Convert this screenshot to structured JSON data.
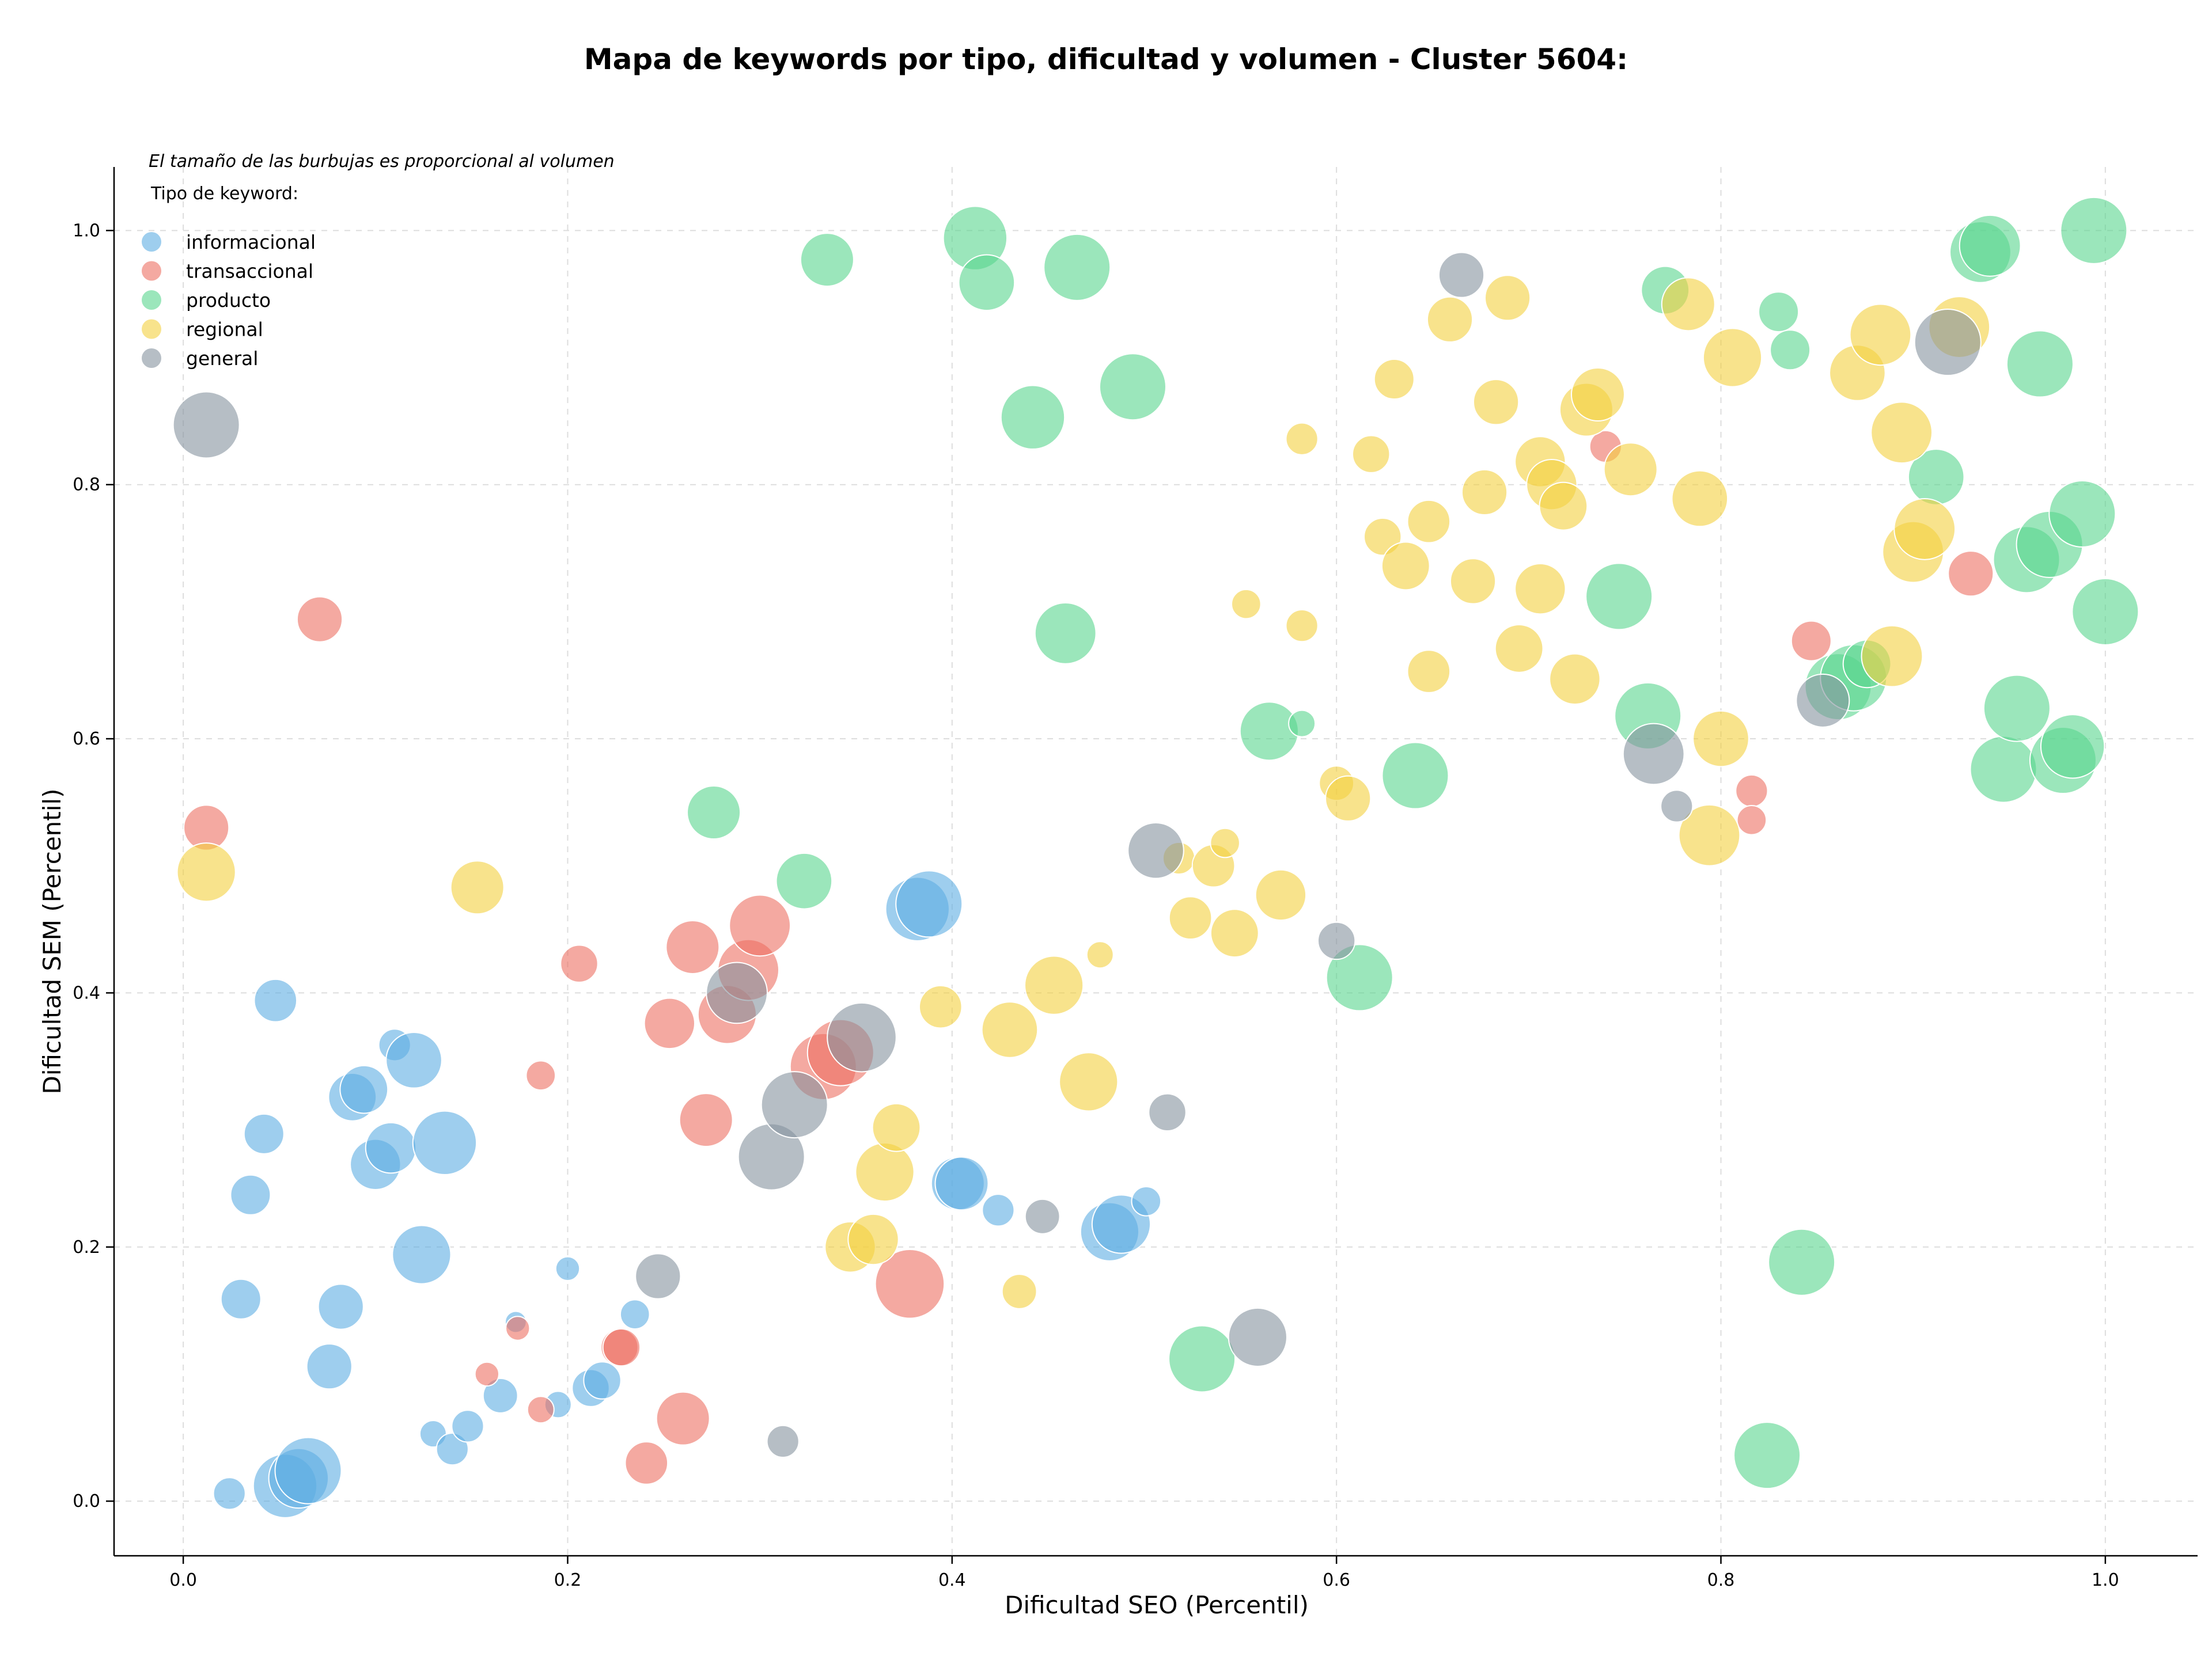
{
  "chart_data": {
    "type": "scatter",
    "title": "Mapa de keywords por tipo, dificultad y volumen - Cluster 5604:",
    "subtitle": "El tamaño de las burbujas es proporcional al volumen",
    "xlabel": "Dificultad SEO (Percentil)",
    "ylabel": "Dificultad SEM (Percentil)",
    "xlim": [
      -0.036,
      1.048
    ],
    "ylim": [
      -0.043,
      1.05
    ],
    "xticks": [
      "0.0",
      "0.2",
      "0.4",
      "0.6",
      "0.8",
      "1.0"
    ],
    "yticks": [
      "0.0",
      "0.2",
      "0.4",
      "0.6",
      "0.8",
      "1.0"
    ],
    "grid": true,
    "legend": {
      "title": "Tipo de keyword:",
      "position": "top-left"
    },
    "series": [
      {
        "name": "informacional",
        "color": "#5dade2",
        "points": [
          [
            0.024,
            0.006,
            24
          ],
          [
            0.053,
            0.012,
            48
          ],
          [
            0.06,
            0.018,
            45
          ],
          [
            0.065,
            0.024,
            50
          ],
          [
            0.03,
            0.159,
            30
          ],
          [
            0.035,
            0.241,
            30
          ],
          [
            0.042,
            0.289,
            30
          ],
          [
            0.048,
            0.394,
            32
          ],
          [
            0.076,
            0.106,
            34
          ],
          [
            0.082,
            0.153,
            34
          ],
          [
            0.088,
            0.318,
            36
          ],
          [
            0.094,
            0.324,
            36
          ],
          [
            0.1,
            0.265,
            38
          ],
          [
            0.108,
            0.278,
            38
          ],
          [
            0.11,
            0.359,
            24
          ],
          [
            0.12,
            0.347,
            42
          ],
          [
            0.124,
            0.194,
            44
          ],
          [
            0.136,
            0.282,
            48
          ],
          [
            0.13,
            0.053,
            20
          ],
          [
            0.14,
            0.041,
            24
          ],
          [
            0.148,
            0.059,
            24
          ],
          [
            0.165,
            0.083,
            26
          ],
          [
            0.173,
            0.141,
            16
          ],
          [
            0.195,
            0.076,
            20
          ],
          [
            0.2,
            0.183,
            18
          ],
          [
            0.212,
            0.089,
            28
          ],
          [
            0.218,
            0.095,
            28
          ],
          [
            0.235,
            0.147,
            22
          ],
          [
            0.382,
            0.466,
            48
          ],
          [
            0.388,
            0.47,
            50
          ],
          [
            0.403,
            0.25,
            40
          ],
          [
            0.405,
            0.25,
            40
          ],
          [
            0.424,
            0.229,
            24
          ],
          [
            0.482,
            0.212,
            44
          ],
          [
            0.488,
            0.218,
            44
          ],
          [
            0.501,
            0.236,
            22
          ]
        ]
      },
      {
        "name": "transaccional",
        "color": "#ec7063",
        "points": [
          [
            0.012,
            0.53,
            34
          ],
          [
            0.071,
            0.694,
            34
          ],
          [
            0.158,
            0.1,
            18
          ],
          [
            0.174,
            0.136,
            18
          ],
          [
            0.186,
            0.072,
            20
          ],
          [
            0.186,
            0.335,
            22
          ],
          [
            0.206,
            0.423,
            28
          ],
          [
            0.227,
            0.121,
            28
          ],
          [
            0.228,
            0.121,
            28
          ],
          [
            0.241,
            0.03,
            32
          ],
          [
            0.253,
            0.376,
            38
          ],
          [
            0.265,
            0.436,
            40
          ],
          [
            0.26,
            0.065,
            40
          ],
          [
            0.272,
            0.3,
            40
          ],
          [
            0.283,
            0.383,
            44
          ],
          [
            0.294,
            0.418,
            46
          ],
          [
            0.3,
            0.453,
            46
          ],
          [
            0.333,
            0.342,
            50
          ],
          [
            0.342,
            0.353,
            50
          ],
          [
            0.378,
            0.171,
            52
          ],
          [
            0.74,
            0.83,
            24
          ],
          [
            0.816,
            0.559,
            24
          ],
          [
            0.816,
            0.536,
            22
          ],
          [
            0.847,
            0.677,
            30
          ],
          [
            0.93,
            0.73,
            34
          ]
        ]
      },
      {
        "name": "producto",
        "color": "#58d68d",
        "points": [
          [
            0.276,
            0.542,
            40
          ],
          [
            0.323,
            0.488,
            42
          ],
          [
            0.335,
            0.977,
            40
          ],
          [
            0.412,
            0.994,
            48
          ],
          [
            0.418,
            0.959,
            42
          ],
          [
            0.442,
            0.853,
            48
          ],
          [
            0.465,
            0.971,
            50
          ],
          [
            0.459,
            0.683,
            46
          ],
          [
            0.494,
            0.877,
            50
          ],
          [
            0.53,
            0.112,
            50
          ],
          [
            0.565,
            0.606,
            44
          ],
          [
            0.582,
            0.612,
            20
          ],
          [
            0.612,
            0.412,
            50
          ],
          [
            0.641,
            0.571,
            50
          ],
          [
            0.747,
            0.712,
            50
          ],
          [
            0.762,
            0.618,
            50
          ],
          [
            0.771,
            0.953,
            36
          ],
          [
            0.824,
            0.036,
            50
          ],
          [
            0.83,
            0.936,
            30
          ],
          [
            0.836,
            0.906,
            30
          ],
          [
            0.842,
            0.188,
            50
          ],
          [
            0.861,
            0.641,
            50
          ],
          [
            0.869,
            0.648,
            50
          ],
          [
            0.876,
            0.659,
            36
          ],
          [
            0.912,
            0.806,
            42
          ],
          [
            0.935,
            0.983,
            46
          ],
          [
            0.94,
            0.988,
            46
          ],
          [
            0.947,
            0.576,
            50
          ],
          [
            0.954,
            0.624,
            50
          ],
          [
            0.959,
            0.741,
            50
          ],
          [
            0.966,
            0.895,
            50
          ],
          [
            0.971,
            0.753,
            50
          ],
          [
            0.978,
            0.583,
            50
          ],
          [
            0.983,
            0.594,
            48
          ],
          [
            0.988,
            0.777,
            50
          ],
          [
            0.994,
            1.0,
            50
          ],
          [
            1.0,
            0.7,
            50
          ]
        ]
      },
      {
        "name": "regional",
        "color": "#f4d03f",
        "points": [
          [
            0.012,
            0.495,
            44
          ],
          [
            0.153,
            0.483,
            40
          ],
          [
            0.347,
            0.2,
            38
          ],
          [
            0.359,
            0.206,
            38
          ],
          [
            0.365,
            0.259,
            44
          ],
          [
            0.371,
            0.294,
            36
          ],
          [
            0.394,
            0.389,
            32
          ],
          [
            0.43,
            0.371,
            42
          ],
          [
            0.435,
            0.165,
            26
          ],
          [
            0.453,
            0.406,
            44
          ],
          [
            0.471,
            0.33,
            44
          ],
          [
            0.477,
            0.43,
            20
          ],
          [
            0.518,
            0.506,
            24
          ],
          [
            0.524,
            0.459,
            32
          ],
          [
            0.536,
            0.5,
            32
          ],
          [
            0.542,
            0.518,
            22
          ],
          [
            0.547,
            0.447,
            36
          ],
          [
            0.553,
            0.706,
            22
          ],
          [
            0.571,
            0.477,
            38
          ],
          [
            0.582,
            0.836,
            24
          ],
          [
            0.582,
            0.689,
            24
          ],
          [
            0.6,
            0.565,
            26
          ],
          [
            0.606,
            0.553,
            34
          ],
          [
            0.618,
            0.824,
            28
          ],
          [
            0.624,
            0.759,
            28
          ],
          [
            0.63,
            0.883,
            30
          ],
          [
            0.636,
            0.736,
            36
          ],
          [
            0.648,
            0.653,
            32
          ],
          [
            0.648,
            0.771,
            32
          ],
          [
            0.659,
            0.93,
            34
          ],
          [
            0.671,
            0.724,
            34
          ],
          [
            0.677,
            0.794,
            34
          ],
          [
            0.683,
            0.865,
            34
          ],
          [
            0.689,
            0.947,
            34
          ],
          [
            0.695,
            0.671,
            36
          ],
          [
            0.706,
            0.718,
            38
          ],
          [
            0.706,
            0.818,
            38
          ],
          [
            0.712,
            0.8,
            38
          ],
          [
            0.718,
            0.783,
            36
          ],
          [
            0.724,
            0.647,
            38
          ],
          [
            0.73,
            0.859,
            40
          ],
          [
            0.736,
            0.871,
            40
          ],
          [
            0.753,
            0.812,
            40
          ],
          [
            0.783,
            0.942,
            40
          ],
          [
            0.789,
            0.789,
            42
          ],
          [
            0.794,
            0.524,
            46
          ],
          [
            0.8,
            0.6,
            42
          ],
          [
            0.806,
            0.9,
            44
          ],
          [
            0.871,
            0.888,
            42
          ],
          [
            0.883,
            0.918,
            46
          ],
          [
            0.889,
            0.665,
            46
          ],
          [
            0.894,
            0.841,
            46
          ],
          [
            0.9,
            0.747,
            46
          ],
          [
            0.906,
            0.765,
            46
          ],
          [
            0.924,
            0.924,
            46
          ]
        ]
      },
      {
        "name": "general",
        "color": "#85929e",
        "points": [
          [
            0.012,
            0.847,
            50
          ],
          [
            0.247,
            0.177,
            34
          ],
          [
            0.288,
            0.4,
            46
          ],
          [
            0.306,
            0.271,
            50
          ],
          [
            0.312,
            0.047,
            24
          ],
          [
            0.318,
            0.312,
            50
          ],
          [
            0.353,
            0.365,
            52
          ],
          [
            0.447,
            0.224,
            26
          ],
          [
            0.506,
            0.512,
            42
          ],
          [
            0.512,
            0.306,
            28
          ],
          [
            0.559,
            0.129,
            44
          ],
          [
            0.6,
            0.441,
            28
          ],
          [
            0.665,
            0.965,
            34
          ],
          [
            0.765,
            0.588,
            46
          ],
          [
            0.777,
            0.547,
            24
          ],
          [
            0.853,
            0.63,
            40
          ],
          [
            0.918,
            0.912,
            50
          ]
        ]
      }
    ]
  }
}
